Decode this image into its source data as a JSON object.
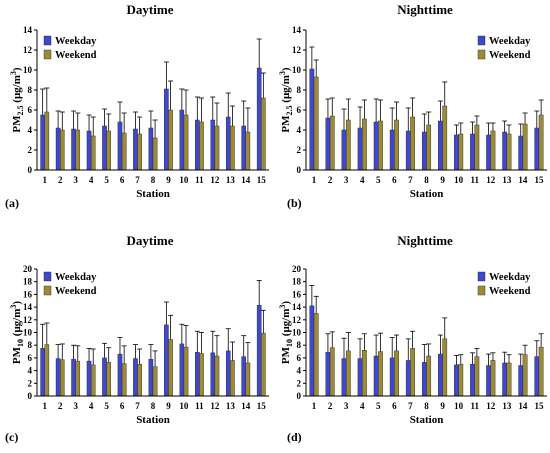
{
  "colors": {
    "weekday": "#3f48cc",
    "weekend": "#9c8a36",
    "axis": "#000000"
  },
  "chart_data": [
    {
      "id": "a",
      "type": "bar",
      "panel_label": "(a)",
      "title": "Daytime",
      "xlabel": "Station",
      "ylabel_main": "PM",
      "ylabel_sub": "2.5",
      "ylabel_unit": " (μg/m",
      "ylabel_sup": "3",
      "ylabel_close": ")",
      "ylim": [
        0,
        14
      ],
      "yticks": [
        "0",
        "2",
        "4",
        "6",
        "8",
        "10",
        "12",
        "14"
      ],
      "categories": [
        "1",
        "2",
        "3",
        "4",
        "5",
        "6",
        "7",
        "8",
        "9",
        "10",
        "11",
        "12",
        "13",
        "14",
        "15"
      ],
      "legend_position": "top-left",
      "series": [
        {
          "name": "Weekday",
          "values": [
            5.5,
            4.2,
            4.1,
            3.9,
            4.4,
            4.8,
            4.1,
            4.2,
            8.1,
            6.0,
            5.0,
            5.0,
            5.3,
            4.4,
            10.2
          ],
          "errors": [
            2.6,
            1.7,
            1.8,
            1.6,
            1.7,
            2.0,
            1.7,
            1.7,
            2.7,
            2.1,
            2.3,
            2.3,
            2.4,
            2.5,
            2.9
          ]
        },
        {
          "name": "Weekend",
          "values": [
            5.8,
            4.0,
            4.0,
            3.4,
            3.9,
            3.7,
            3.6,
            3.2,
            6.0,
            5.5,
            4.8,
            4.4,
            4.4,
            3.8,
            7.2
          ],
          "errors": [
            2.4,
            1.8,
            1.7,
            1.9,
            1.7,
            2.0,
            1.7,
            1.8,
            2.9,
            2.5,
            2.4,
            2.3,
            2.0,
            2.4,
            2.5
          ]
        }
      ]
    },
    {
      "id": "b",
      "type": "bar",
      "panel_label": "(b)",
      "title": "Nighttime",
      "xlabel": "Station",
      "ylabel_main": "PM",
      "ylabel_sub": "2.5",
      "ylabel_unit": " (μg/m",
      "ylabel_sup": "3",
      "ylabel_close": ")",
      "ylim": [
        0,
        14
      ],
      "yticks": [
        "0",
        "2",
        "4",
        "6",
        "8",
        "10",
        "12",
        "14"
      ],
      "categories": [
        "1",
        "2",
        "3",
        "4",
        "5",
        "6",
        "7",
        "8",
        "9",
        "10",
        "11",
        "12",
        "13",
        "14",
        "15"
      ],
      "legend_position": "top-right",
      "series": [
        {
          "name": "Weekday",
          "values": [
            10.1,
            5.2,
            4.0,
            4.2,
            4.8,
            4.0,
            3.9,
            3.8,
            4.9,
            3.5,
            3.6,
            3.5,
            3.8,
            3.4,
            4.2
          ],
          "errors": [
            2.2,
            1.9,
            2.1,
            2.1,
            2.3,
            2.2,
            2.3,
            1.8,
            2.0,
            1.0,
            1.2,
            1.2,
            1.1,
            1.2,
            1.7
          ]
        },
        {
          "name": "Weekend",
          "values": [
            9.3,
            5.4,
            5.0,
            5.1,
            4.9,
            5.0,
            5.3,
            4.5,
            6.4,
            3.6,
            4.5,
            3.9,
            3.6,
            4.6,
            5.5
          ],
          "errors": [
            1.7,
            1.8,
            2.1,
            1.9,
            2.1,
            1.8,
            1.9,
            1.3,
            2.4,
            1.1,
            0.9,
            0.8,
            0.9,
            1.1,
            1.5
          ]
        }
      ]
    },
    {
      "id": "c",
      "type": "bar",
      "panel_label": "(c)",
      "title": "Daytime",
      "xlabel": "Station",
      "ylabel_main": "PM",
      "ylabel_sub": "10",
      "ylabel_unit": " (μg/m",
      "ylabel_sup": "3",
      "ylabel_close": ")",
      "ylim": [
        0,
        20
      ],
      "yticks": [
        "0",
        "2",
        "4",
        "6",
        "8",
        "10",
        "12",
        "14",
        "16",
        "18",
        "20"
      ],
      "categories": [
        "1",
        "2",
        "3",
        "4",
        "5",
        "6",
        "7",
        "8",
        "9",
        "10",
        "11",
        "12",
        "13",
        "14",
        "15"
      ],
      "legend_position": "top-left",
      "series": [
        {
          "name": "Weekday",
          "values": [
            7.5,
            5.9,
            5.8,
            5.5,
            6.0,
            6.6,
            5.9,
            5.8,
            11.2,
            8.2,
            6.9,
            6.8,
            7.1,
            6.2,
            14.3
          ],
          "errors": [
            3.8,
            2.2,
            2.2,
            2.0,
            2.3,
            2.6,
            2.2,
            2.3,
            3.6,
            3.1,
            3.3,
            3.4,
            3.5,
            3.3,
            3.9
          ]
        },
        {
          "name": "Weekend",
          "values": [
            8.1,
            5.7,
            5.5,
            4.9,
            5.3,
            5.1,
            5.0,
            4.6,
            8.9,
            7.7,
            6.7,
            6.3,
            5.6,
            5.2,
            9.9
          ],
          "errors": [
            3.4,
            2.5,
            2.4,
            2.5,
            2.3,
            2.8,
            2.4,
            2.5,
            3.8,
            3.4,
            3.3,
            3.2,
            2.9,
            3.2,
            3.6
          ]
        }
      ]
    },
    {
      "id": "d",
      "type": "bar",
      "panel_label": "(d)",
      "title": "Nighttime",
      "xlabel": "Station",
      "ylabel_main": "PM",
      "ylabel_sub": "10",
      "ylabel_unit": " (μg/m",
      "ylabel_sup": "3",
      "ylabel_close": ")",
      "ylim": [
        0,
        20
      ],
      "yticks": [
        "0",
        "2",
        "4",
        "6",
        "8",
        "10",
        "12",
        "14",
        "16",
        "18",
        "20"
      ],
      "categories": [
        "1",
        "2",
        "3",
        "4",
        "5",
        "6",
        "7",
        "8",
        "9",
        "10",
        "11",
        "12",
        "13",
        "14",
        "15"
      ],
      "legend_position": "top-right",
      "series": [
        {
          "name": "Weekday",
          "values": [
            14.2,
            6.9,
            5.9,
            5.9,
            6.3,
            6.0,
            5.6,
            5.3,
            6.6,
            4.9,
            5.0,
            4.8,
            5.2,
            4.8,
            6.2
          ],
          "errors": [
            3.2,
            2.9,
            3.2,
            3.1,
            3.3,
            3.2,
            3.4,
            2.8,
            3.0,
            1.5,
            1.8,
            1.8,
            1.7,
            1.8,
            2.5
          ]
        },
        {
          "name": "Weekend",
          "values": [
            13.0,
            7.6,
            7.1,
            7.2,
            7.0,
            7.1,
            7.5,
            6.3,
            9.0,
            5.0,
            6.2,
            5.6,
            5.2,
            6.5,
            7.7
          ],
          "errors": [
            2.7,
            2.5,
            2.9,
            2.6,
            2.9,
            2.5,
            2.7,
            1.9,
            3.3,
            1.5,
            1.3,
            1.2,
            1.3,
            1.5,
            2.1
          ]
        }
      ]
    }
  ]
}
